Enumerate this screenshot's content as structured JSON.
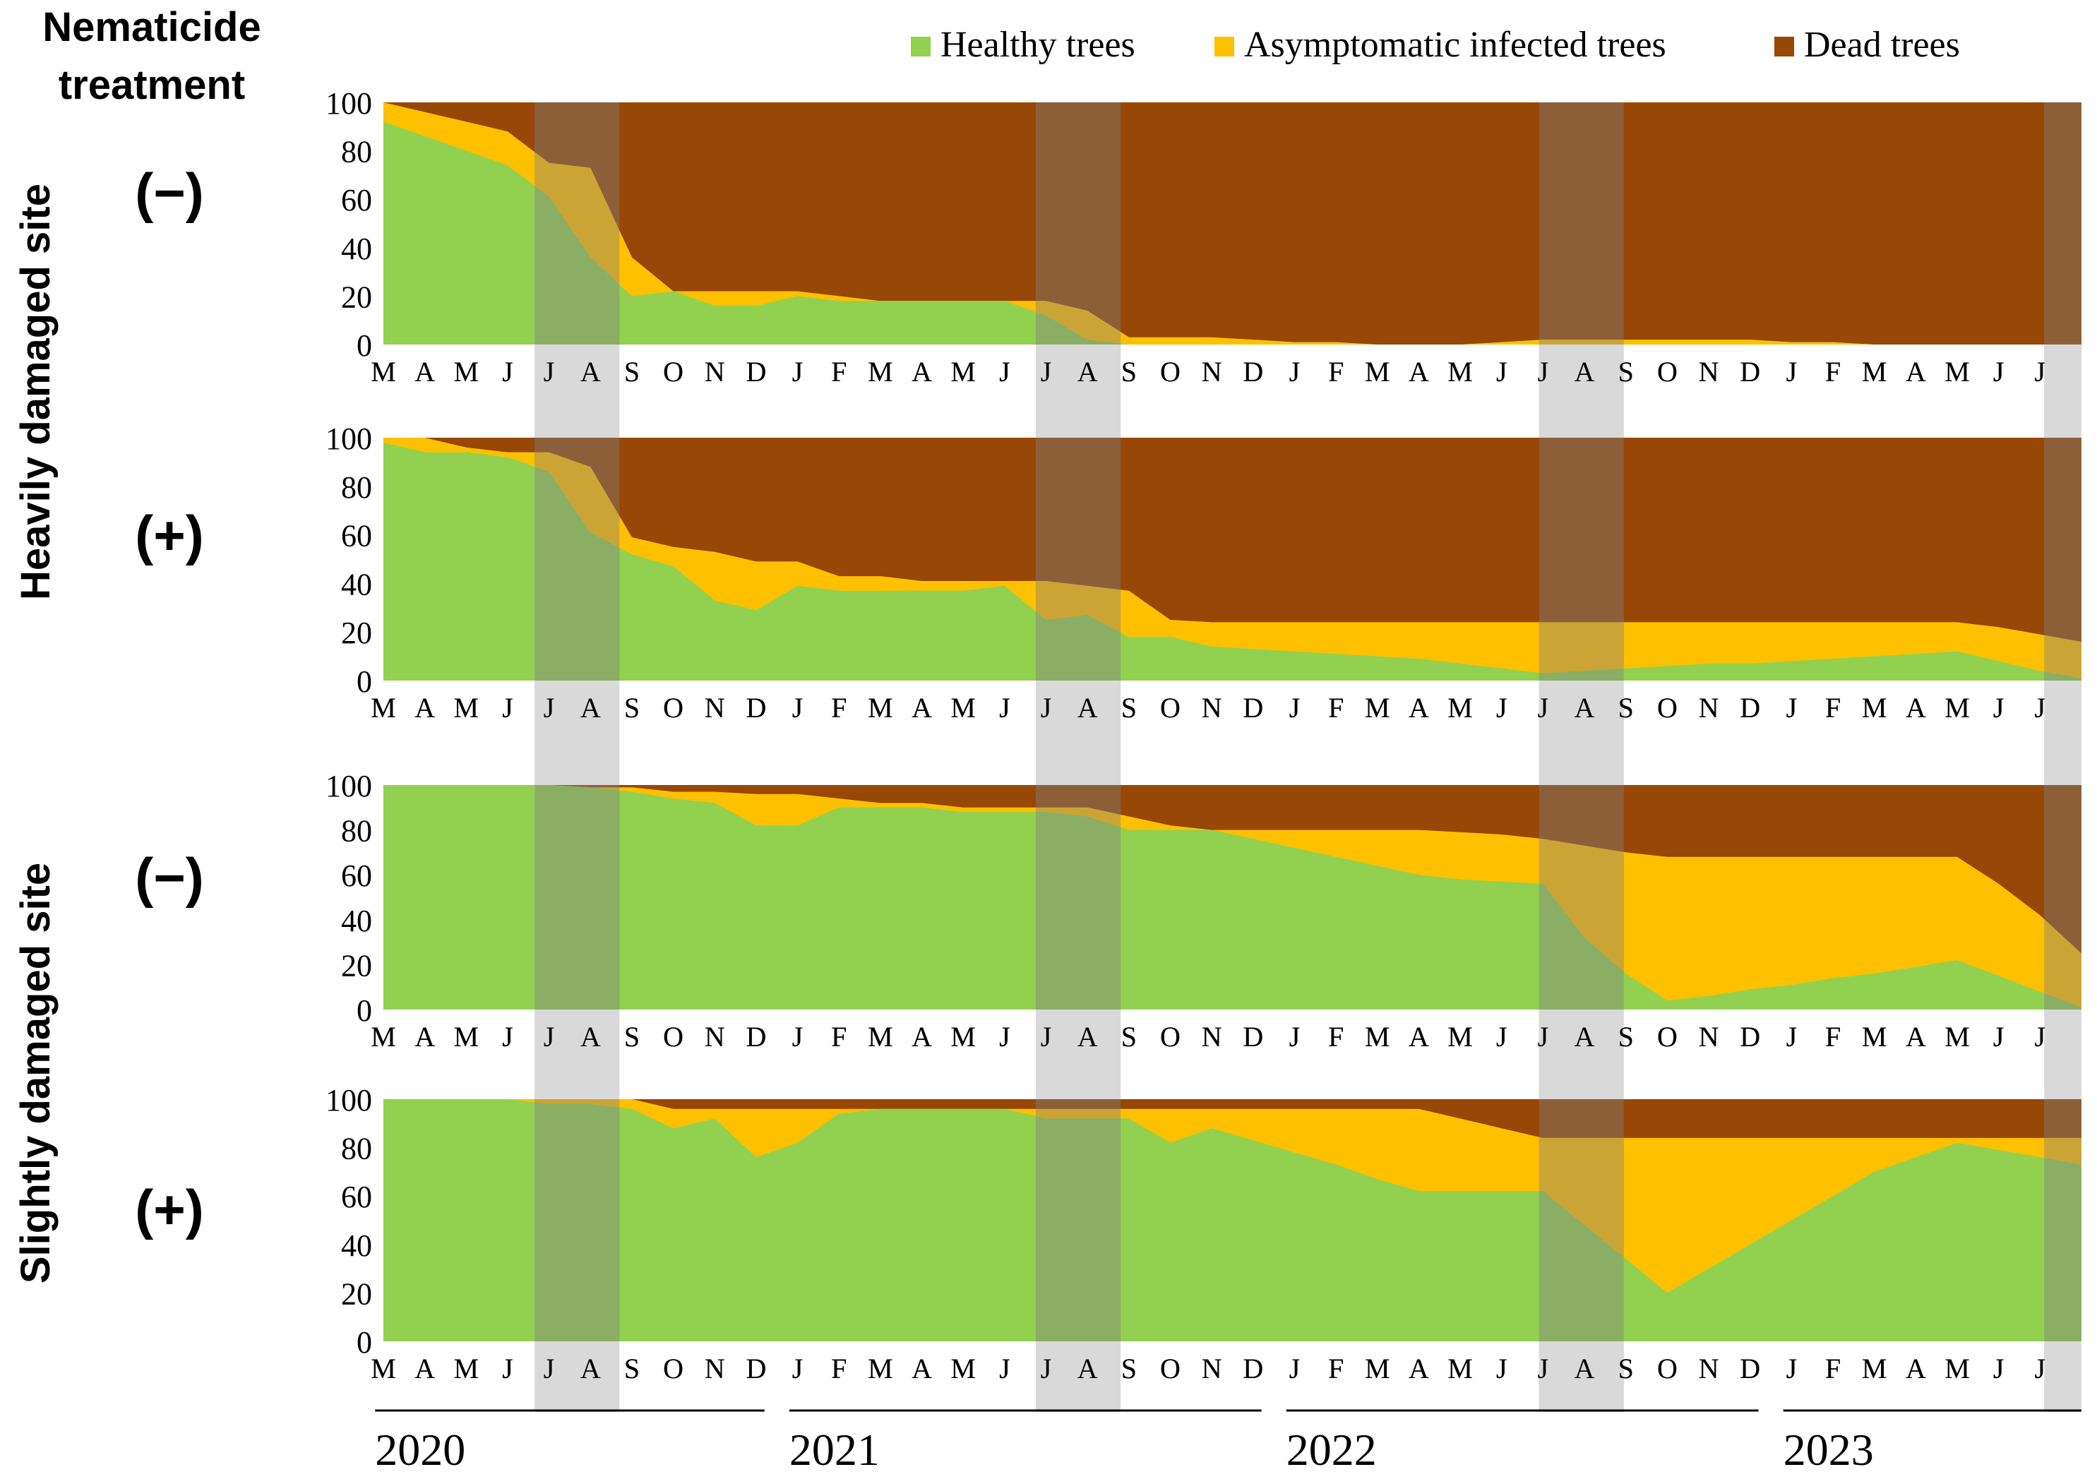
{
  "header": {
    "title_line1": "Nematicide",
    "title_line2": "treatment"
  },
  "legend": [
    {
      "label": "Healthy trees",
      "color": "#92d050"
    },
    {
      "label": "Asymptomatic infected trees",
      "color": "#ffc000"
    },
    {
      "label": "Dead trees",
      "color": "#974706"
    }
  ],
  "site_labels": {
    "heavy": "Heavily damaged site",
    "slight": "Slightly damaged site"
  },
  "years": [
    "2020",
    "2021",
    "2022",
    "2023"
  ],
  "chart_data": {
    "type": "area",
    "stacked": true,
    "title": "Nematicide treatment",
    "ylim": [
      0,
      100
    ],
    "yticks": [
      0,
      20,
      40,
      60,
      80,
      100
    ],
    "xlabel": "",
    "ylabel": "",
    "x_month_labels": [
      "M",
      "A",
      "M",
      "J",
      "J",
      "A",
      "S",
      "O",
      "N",
      "D",
      "J",
      "F",
      "M",
      "A",
      "M",
      "J",
      "J",
      "A",
      "S",
      "O",
      "N",
      "D",
      "J",
      "F",
      "M",
      "A",
      "M",
      "J",
      "J",
      "A",
      "S",
      "O",
      "N",
      "D",
      "J",
      "F",
      "M",
      "A",
      "M",
      "J",
      "J"
    ],
    "x_extent_months": [
      0,
      41
    ],
    "x_note": "x = months since March 2020 (0 = M, 2020)",
    "shaded_periods": [
      [
        3.65,
        5.7
      ],
      [
        15.75,
        17.8
      ],
      [
        27.9,
        29.95
      ],
      [
        40.1,
        41
      ]
    ],
    "series_names": [
      "Healthy trees",
      "Asymptomatic infected trees",
      "Dead trees"
    ],
    "panels": [
      {
        "site": "Heavily damaged site",
        "treatment": "(−)",
        "points": [
          {
            "x": 0,
            "healthy": 92,
            "infected_top": 100
          },
          {
            "x": 1,
            "healthy": 86,
            "infected_top": 96
          },
          {
            "x": 2,
            "healthy": 80,
            "infected_top": 92
          },
          {
            "x": 3,
            "healthy": 74,
            "infected_top": 88
          },
          {
            "x": 4,
            "healthy": 61,
            "infected_top": 75
          },
          {
            "x": 5,
            "healthy": 36,
            "infected_top": 73
          },
          {
            "x": 6,
            "healthy": 20,
            "infected_top": 36
          },
          {
            "x": 7,
            "healthy": 22,
            "infected_top": 22
          },
          {
            "x": 8,
            "healthy": 16,
            "infected_top": 22
          },
          {
            "x": 9,
            "healthy": 16,
            "infected_top": 22
          },
          {
            "x": 10,
            "healthy": 20,
            "infected_top": 22
          },
          {
            "x": 11,
            "healthy": 18,
            "infected_top": 20
          },
          {
            "x": 12,
            "healthy": 18,
            "infected_top": 18
          },
          {
            "x": 13,
            "healthy": 18,
            "infected_top": 18
          },
          {
            "x": 14,
            "healthy": 18,
            "infected_top": 18
          },
          {
            "x": 15,
            "healthy": 18,
            "infected_top": 18
          },
          {
            "x": 16,
            "healthy": 12,
            "infected_top": 18
          },
          {
            "x": 17,
            "healthy": 2,
            "infected_top": 14
          },
          {
            "x": 18,
            "healthy": 0,
            "infected_top": 3
          },
          {
            "x": 19,
            "healthy": 0,
            "infected_top": 3
          },
          {
            "x": 20,
            "healthy": 0,
            "infected_top": 3
          },
          {
            "x": 21,
            "healthy": 0,
            "infected_top": 2
          },
          {
            "x": 22,
            "healthy": 0,
            "infected_top": 1
          },
          {
            "x": 23,
            "healthy": 0,
            "infected_top": 1
          },
          {
            "x": 24,
            "healthy": 0,
            "infected_top": 0
          },
          {
            "x": 25,
            "healthy": 0,
            "infected_top": 0
          },
          {
            "x": 26,
            "healthy": 0,
            "infected_top": 0
          },
          {
            "x": 27,
            "healthy": 0,
            "infected_top": 1
          },
          {
            "x": 28,
            "healthy": 0,
            "infected_top": 2
          },
          {
            "x": 29,
            "healthy": 0,
            "infected_top": 2
          },
          {
            "x": 30,
            "healthy": 0,
            "infected_top": 2
          },
          {
            "x": 31,
            "healthy": 0,
            "infected_top": 2
          },
          {
            "x": 32,
            "healthy": 0,
            "infected_top": 2
          },
          {
            "x": 33,
            "healthy": 0,
            "infected_top": 2
          },
          {
            "x": 34,
            "healthy": 0,
            "infected_top": 1
          },
          {
            "x": 35,
            "healthy": 0,
            "infected_top": 1
          },
          {
            "x": 36,
            "healthy": 0,
            "infected_top": 0
          },
          {
            "x": 37,
            "healthy": 0,
            "infected_top": 0
          },
          {
            "x": 38,
            "healthy": 0,
            "infected_top": 0
          },
          {
            "x": 39,
            "healthy": 0,
            "infected_top": 0
          },
          {
            "x": 40,
            "healthy": 0,
            "infected_top": 0
          },
          {
            "x": 41,
            "healthy": 0,
            "infected_top": 0
          }
        ]
      },
      {
        "site": "Heavily damaged site",
        "treatment": "(+)",
        "points": [
          {
            "x": 0,
            "healthy": 98,
            "infected_top": 100
          },
          {
            "x": 1,
            "healthy": 94,
            "infected_top": 100
          },
          {
            "x": 2,
            "healthy": 94,
            "infected_top": 96
          },
          {
            "x": 3,
            "healthy": 92,
            "infected_top": 94
          },
          {
            "x": 4,
            "healthy": 86,
            "infected_top": 94
          },
          {
            "x": 5,
            "healthy": 61,
            "infected_top": 88
          },
          {
            "x": 6,
            "healthy": 52,
            "infected_top": 59
          },
          {
            "x": 7,
            "healthy": 47,
            "infected_top": 55
          },
          {
            "x": 8,
            "healthy": 33,
            "infected_top": 53
          },
          {
            "x": 9,
            "healthy": 29,
            "infected_top": 49
          },
          {
            "x": 10,
            "healthy": 39,
            "infected_top": 49
          },
          {
            "x": 11,
            "healthy": 37,
            "infected_top": 43
          },
          {
            "x": 12,
            "healthy": 37,
            "infected_top": 43
          },
          {
            "x": 13,
            "healthy": 37,
            "infected_top": 41
          },
          {
            "x": 14,
            "healthy": 37,
            "infected_top": 41
          },
          {
            "x": 15,
            "healthy": 39,
            "infected_top": 41
          },
          {
            "x": 16,
            "healthy": 25,
            "infected_top": 41
          },
          {
            "x": 17,
            "healthy": 27,
            "infected_top": 39
          },
          {
            "x": 18,
            "healthy": 18,
            "infected_top": 37
          },
          {
            "x": 19,
            "healthy": 18,
            "infected_top": 25
          },
          {
            "x": 20,
            "healthy": 14,
            "infected_top": 24
          },
          {
            "x": 21,
            "healthy": 13,
            "infected_top": 24
          },
          {
            "x": 22,
            "healthy": 12,
            "infected_top": 24
          },
          {
            "x": 23,
            "healthy": 11,
            "infected_top": 24
          },
          {
            "x": 24,
            "healthy": 10,
            "infected_top": 24
          },
          {
            "x": 25,
            "healthy": 9,
            "infected_top": 24
          },
          {
            "x": 26,
            "healthy": 7,
            "infected_top": 24
          },
          {
            "x": 27,
            "healthy": 5,
            "infected_top": 24
          },
          {
            "x": 28,
            "healthy": 3,
            "infected_top": 24
          },
          {
            "x": 29,
            "healthy": 4,
            "infected_top": 24
          },
          {
            "x": 30,
            "healthy": 5,
            "infected_top": 24
          },
          {
            "x": 31,
            "healthy": 6,
            "infected_top": 24
          },
          {
            "x": 32,
            "healthy": 7,
            "infected_top": 24
          },
          {
            "x": 33,
            "healthy": 7,
            "infected_top": 24
          },
          {
            "x": 34,
            "healthy": 8,
            "infected_top": 24
          },
          {
            "x": 35,
            "healthy": 9,
            "infected_top": 24
          },
          {
            "x": 36,
            "healthy": 10,
            "infected_top": 24
          },
          {
            "x": 37,
            "healthy": 11,
            "infected_top": 24
          },
          {
            "x": 38,
            "healthy": 12,
            "infected_top": 24
          },
          {
            "x": 39,
            "healthy": 8,
            "infected_top": 22
          },
          {
            "x": 40,
            "healthy": 4,
            "infected_top": 19
          },
          {
            "x": 41,
            "healthy": 1,
            "infected_top": 16
          }
        ]
      },
      {
        "site": "Slightly damaged site",
        "treatment": "(−)",
        "points": [
          {
            "x": 0,
            "healthy": 100,
            "infected_top": 100
          },
          {
            "x": 1,
            "healthy": 100,
            "infected_top": 100
          },
          {
            "x": 2,
            "healthy": 100,
            "infected_top": 100
          },
          {
            "x": 3,
            "healthy": 100,
            "infected_top": 100
          },
          {
            "x": 4,
            "healthy": 100,
            "infected_top": 100
          },
          {
            "x": 5,
            "healthy": 99,
            "infected_top": 99
          },
          {
            "x": 6,
            "healthy": 97,
            "infected_top": 99
          },
          {
            "x": 7,
            "healthy": 94,
            "infected_top": 97
          },
          {
            "x": 8,
            "healthy": 92,
            "infected_top": 97
          },
          {
            "x": 9,
            "healthy": 82,
            "infected_top": 96
          },
          {
            "x": 10,
            "healthy": 82,
            "infected_top": 96
          },
          {
            "x": 11,
            "healthy": 90,
            "infected_top": 94
          },
          {
            "x": 12,
            "healthy": 90,
            "infected_top": 92
          },
          {
            "x": 13,
            "healthy": 90,
            "infected_top": 92
          },
          {
            "x": 14,
            "healthy": 88,
            "infected_top": 90
          },
          {
            "x": 15,
            "healthy": 88,
            "infected_top": 90
          },
          {
            "x": 16,
            "healthy": 88,
            "infected_top": 90
          },
          {
            "x": 17,
            "healthy": 86,
            "infected_top": 90
          },
          {
            "x": 18,
            "healthy": 80,
            "infected_top": 86
          },
          {
            "x": 19,
            "healthy": 80,
            "infected_top": 82
          },
          {
            "x": 20,
            "healthy": 80,
            "infected_top": 80
          },
          {
            "x": 21,
            "healthy": 76,
            "infected_top": 80
          },
          {
            "x": 22,
            "healthy": 72,
            "infected_top": 80
          },
          {
            "x": 23,
            "healthy": 68,
            "infected_top": 80
          },
          {
            "x": 24,
            "healthy": 64,
            "infected_top": 80
          },
          {
            "x": 25,
            "healthy": 60,
            "infected_top": 80
          },
          {
            "x": 26,
            "healthy": 58,
            "infected_top": 79
          },
          {
            "x": 27,
            "healthy": 57,
            "infected_top": 78
          },
          {
            "x": 28,
            "healthy": 56,
            "infected_top": 76
          },
          {
            "x": 29,
            "healthy": 32,
            "infected_top": 73
          },
          {
            "x": 30,
            "healthy": 16,
            "infected_top": 70
          },
          {
            "x": 31,
            "healthy": 4,
            "infected_top": 68
          },
          {
            "x": 32,
            "healthy": 6,
            "infected_top": 68
          },
          {
            "x": 33,
            "healthy": 9,
            "infected_top": 68
          },
          {
            "x": 34,
            "healthy": 11,
            "infected_top": 68
          },
          {
            "x": 35,
            "healthy": 14,
            "infected_top": 68
          },
          {
            "x": 36,
            "healthy": 16,
            "infected_top": 68
          },
          {
            "x": 37,
            "healthy": 19,
            "infected_top": 68
          },
          {
            "x": 38,
            "healthy": 22,
            "infected_top": 68
          },
          {
            "x": 39,
            "healthy": 15,
            "infected_top": 56
          },
          {
            "x": 40,
            "healthy": 8,
            "infected_top": 42
          },
          {
            "x": 41,
            "healthy": 1,
            "infected_top": 25
          }
        ]
      },
      {
        "site": "Slightly damaged site",
        "treatment": "(+)",
        "points": [
          {
            "x": 0,
            "healthy": 100,
            "infected_top": 100
          },
          {
            "x": 1,
            "healthy": 100,
            "infected_top": 100
          },
          {
            "x": 2,
            "healthy": 100,
            "infected_top": 100
          },
          {
            "x": 3,
            "healthy": 100,
            "infected_top": 100
          },
          {
            "x": 4,
            "healthy": 98,
            "infected_top": 100
          },
          {
            "x": 5,
            "healthy": 98,
            "infected_top": 100
          },
          {
            "x": 6,
            "healthy": 96,
            "infected_top": 100
          },
          {
            "x": 7,
            "healthy": 88,
            "infected_top": 96
          },
          {
            "x": 8,
            "healthy": 92,
            "infected_top": 96
          },
          {
            "x": 9,
            "healthy": 76,
            "infected_top": 96
          },
          {
            "x": 10,
            "healthy": 82,
            "infected_top": 96
          },
          {
            "x": 11,
            "healthy": 94,
            "infected_top": 96
          },
          {
            "x": 12,
            "healthy": 96,
            "infected_top": 96
          },
          {
            "x": 13,
            "healthy": 96,
            "infected_top": 96
          },
          {
            "x": 14,
            "healthy": 96,
            "infected_top": 96
          },
          {
            "x": 15,
            "healthy": 96,
            "infected_top": 96
          },
          {
            "x": 16,
            "healthy": 92,
            "infected_top": 96
          },
          {
            "x": 17,
            "healthy": 92,
            "infected_top": 96
          },
          {
            "x": 18,
            "healthy": 92,
            "infected_top": 96
          },
          {
            "x": 19,
            "healthy": 82,
            "infected_top": 96
          },
          {
            "x": 20,
            "healthy": 88,
            "infected_top": 96
          },
          {
            "x": 21,
            "healthy": 83,
            "infected_top": 96
          },
          {
            "x": 22,
            "healthy": 78,
            "infected_top": 96
          },
          {
            "x": 23,
            "healthy": 73,
            "infected_top": 96
          },
          {
            "x": 24,
            "healthy": 67,
            "infected_top": 96
          },
          {
            "x": 25,
            "healthy": 62,
            "infected_top": 96
          },
          {
            "x": 26,
            "healthy": 62,
            "infected_top": 92
          },
          {
            "x": 27,
            "healthy": 62,
            "infected_top": 88
          },
          {
            "x": 28,
            "healthy": 62,
            "infected_top": 84
          },
          {
            "x": 29,
            "healthy": 48,
            "infected_top": 84
          },
          {
            "x": 30,
            "healthy": 34,
            "infected_top": 84
          },
          {
            "x": 31,
            "healthy": 20,
            "infected_top": 84
          },
          {
            "x": 32,
            "healthy": 30,
            "infected_top": 84
          },
          {
            "x": 33,
            "healthy": 40,
            "infected_top": 84
          },
          {
            "x": 34,
            "healthy": 50,
            "infected_top": 84
          },
          {
            "x": 35,
            "healthy": 60,
            "infected_top": 84
          },
          {
            "x": 36,
            "healthy": 70,
            "infected_top": 84
          },
          {
            "x": 37,
            "healthy": 76,
            "infected_top": 84
          },
          {
            "x": 38,
            "healthy": 82,
            "infected_top": 84
          },
          {
            "x": 39,
            "healthy": 79,
            "infected_top": 84
          },
          {
            "x": 40,
            "healthy": 76,
            "infected_top": 84
          },
          {
            "x": 41,
            "healthy": 73,
            "infected_top": 84
          }
        ]
      }
    ]
  }
}
